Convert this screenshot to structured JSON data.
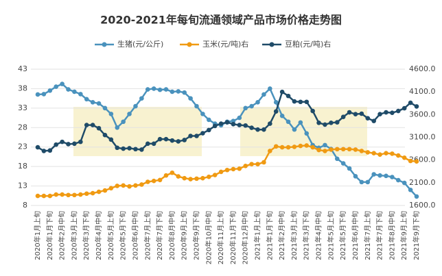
{
  "chart_data": {
    "type": "line",
    "title": "2020-2021年每旬流通领域产品市场价格走势图",
    "categories": [
      "2020年1月上旬",
      null,
      "2020年1月下旬",
      null,
      "2020年2月中旬",
      null,
      "2020年3月上旬",
      null,
      "2020年3月下旬",
      null,
      "2020年4月中旬",
      null,
      "2020年5月上旬",
      null,
      "2020年5月下旬",
      null,
      "2020年6月中旬",
      null,
      "2020年7月上旬",
      null,
      "2020年7月下旬",
      null,
      "2020年8月中旬",
      null,
      "2020年9月上旬",
      null,
      "2020年9月下旬",
      null,
      "2020年10月中旬",
      null,
      "2020年11月上旬",
      null,
      "2020年11月下旬",
      null,
      "2020年12月中旬",
      null,
      "2021年1月上旬",
      null,
      "2021年1月下旬",
      null,
      "2021年2月中旬",
      null,
      "2021年3月上旬",
      null,
      "2021年3月下旬",
      null,
      "2021年4月中旬",
      null,
      "2021年5月上旬",
      null,
      "2021年5月下旬",
      null,
      "2021年6月中旬",
      null,
      "2021年7月上旬",
      null,
      "2021年7月下旬",
      null,
      "2021年8月中旬",
      null,
      "2021年9月上旬",
      null,
      "2021年9月下旬"
    ],
    "series": [
      {
        "name": "生猪(元/公斤)",
        "color": "#4a92bd",
        "axis": "y",
        "values": [
          36.5,
          36.6,
          37.5,
          38.5,
          39.2,
          37.8,
          37.2,
          36.6,
          35.3,
          34.5,
          34.2,
          33.0,
          31.5,
          28.0,
          29.5,
          31.5,
          33.5,
          35.5,
          37.8,
          38.0,
          37.7,
          37.8,
          37.2,
          37.3,
          37.0,
          35.5,
          33.5,
          31.5,
          30.0,
          29.0,
          28.6,
          29.5,
          29.7,
          30.5,
          33.0,
          33.5,
          34.5,
          36.5,
          38.0,
          34.5,
          31.0,
          29.5,
          27.5,
          29.3,
          26.5,
          23.5,
          22.8,
          23.5,
          22.5,
          20.0,
          18.8,
          17.5,
          15.5,
          14.0,
          14.0,
          16.0,
          15.7,
          15.6,
          15.3,
          14.5,
          13.8,
          12.0,
          10.3
        ]
      },
      {
        "name": "玉米(元/吨)右",
        "color": "#f09a12",
        "axis": "y2",
        "values": [
          1810,
          1810,
          1810,
          1840,
          1840,
          1830,
          1830,
          1840,
          1860,
          1870,
          1900,
          1930,
          1980,
          2030,
          2040,
          2020,
          2040,
          2060,
          2120,
          2140,
          2160,
          2260,
          2320,
          2240,
          2200,
          2180,
          2190,
          2200,
          2230,
          2270,
          2340,
          2380,
          2400,
          2410,
          2470,
          2510,
          2510,
          2550,
          2800,
          2900,
          2880,
          2880,
          2890,
          2910,
          2920,
          2880,
          2820,
          2800,
          2830,
          2840,
          2840,
          2840,
          2830,
          2800,
          2770,
          2750,
          2720,
          2750,
          2740,
          2700,
          2650,
          2580,
          2570
        ]
      },
      {
        "name": "豆粕(元/吨)右",
        "color": "#1f4b68",
        "axis": "y2",
        "values": [
          2880,
          2800,
          2810,
          2940,
          3000,
          2950,
          2960,
          3000,
          3370,
          3370,
          3300,
          3150,
          3050,
          2870,
          2850,
          2860,
          2840,
          2830,
          2960,
          2960,
          3060,
          3060,
          3030,
          3010,
          3040,
          3130,
          3130,
          3190,
          3260,
          3350,
          3400,
          3430,
          3390,
          3370,
          3360,
          3310,
          3270,
          3270,
          3400,
          3670,
          4100,
          4010,
          3890,
          3880,
          3880,
          3680,
          3420,
          3380,
          3420,
          3430,
          3550,
          3650,
          3610,
          3620,
          3520,
          3460,
          3610,
          3650,
          3640,
          3680,
          3740,
          3860,
          3780
        ]
      }
    ],
    "ylim": [
      8,
      43
    ],
    "yticks": [
      8,
      13,
      18,
      23,
      28,
      33,
      38,
      43
    ],
    "y2lim": [
      1600,
      4600
    ],
    "y2ticks": [
      {
        "value": 1600,
        "label": "1600.0"
      },
      {
        "value": 2100,
        "label": "2100.0"
      },
      {
        "value": 2600,
        "label": "2600.0"
      },
      {
        "value": 3100,
        "label": "3100.0"
      },
      {
        "value": 3600,
        "label": "3600.0"
      },
      {
        "value": 4100,
        "label": "4100.0"
      },
      {
        "value": 4600,
        "label": "4600.0"
      }
    ],
    "grid": true,
    "legend": "top"
  }
}
